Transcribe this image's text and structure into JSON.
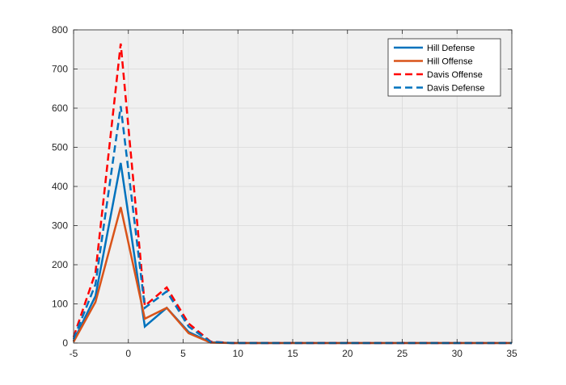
{
  "chart_data": {
    "type": "line",
    "xlim": [
      -5,
      35
    ],
    "ylim": [
      0,
      800
    ],
    "xticks": [
      -5,
      0,
      5,
      10,
      15,
      20,
      25,
      30,
      35
    ],
    "yticks": [
      0,
      100,
      200,
      300,
      400,
      500,
      600,
      700,
      800
    ],
    "grid": true,
    "legend_position": "top-right",
    "x": [
      -5,
      -3,
      -0.7,
      1.5,
      3.5,
      5.5,
      7.5,
      9.5,
      11.5,
      13.5,
      15.5,
      17.5,
      19.5,
      21.5,
      23.5,
      25.5,
      27.5,
      29.5,
      31.5,
      33.5,
      35
    ],
    "series": [
      {
        "name": "Hill Defense",
        "color": "#0072BD",
        "style": "solid",
        "values": [
          5,
          120,
          460,
          42,
          90,
          28,
          2,
          0,
          0,
          0,
          0,
          0,
          0,
          0,
          0,
          0,
          0,
          0,
          0,
          0,
          0
        ]
      },
      {
        "name": "Hill Offense",
        "color": "#D95319",
        "style": "solid",
        "values": [
          3,
          105,
          347,
          62,
          90,
          25,
          1,
          0,
          0,
          0,
          0,
          0,
          0,
          0,
          0,
          0,
          0,
          0,
          0,
          0,
          0
        ]
      },
      {
        "name": "Davis Offense",
        "color": "#FF0000",
        "style": "dashed",
        "values": [
          15,
          180,
          765,
          95,
          142,
          50,
          4,
          0,
          0,
          0,
          0,
          0,
          0,
          0,
          0,
          0,
          0,
          0,
          0,
          0,
          0
        ]
      },
      {
        "name": "Davis Defense",
        "color": "#0072BD",
        "style": "dashed",
        "values": [
          10,
          150,
          605,
          90,
          132,
          42,
          3,
          0,
          0,
          0,
          0,
          0,
          0,
          0,
          0,
          0,
          0,
          0,
          0,
          0,
          0
        ]
      }
    ]
  }
}
